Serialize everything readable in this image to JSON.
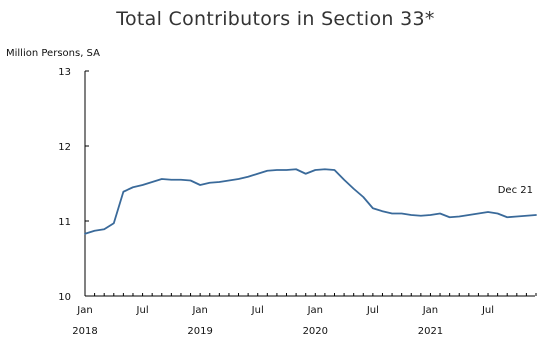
{
  "chart_data": {
    "type": "line",
    "title": "Total Contributors in Section 33*",
    "ylabel": "Million Persons, SA",
    "xlabel": "",
    "ylim": [
      10,
      13
    ],
    "yticks": [
      10,
      11,
      12,
      13
    ],
    "grid": false,
    "x_start": "2018-01",
    "x_end": "2021-12",
    "x_tick_labels": [
      {
        "month": 0,
        "label": "Jan",
        "year": "2018"
      },
      {
        "month": 6,
        "label": "Jul",
        "year": ""
      },
      {
        "month": 12,
        "label": "Jan",
        "year": "2019"
      },
      {
        "month": 18,
        "label": "Jul",
        "year": ""
      },
      {
        "month": 24,
        "label": "Jan",
        "year": "2020"
      },
      {
        "month": 30,
        "label": "Jul",
        "year": ""
      },
      {
        "month": 36,
        "label": "Jan",
        "year": "2021"
      },
      {
        "month": 42,
        "label": "Jul",
        "year": ""
      }
    ],
    "series": [
      {
        "color": "#3a6a9a",
        "x": [
          "2018-01",
          "2018-02",
          "2018-03",
          "2018-04",
          "2018-05",
          "2018-06",
          "2018-07",
          "2018-08",
          "2018-09",
          "2018-10",
          "2018-11",
          "2018-12",
          "2019-01",
          "2019-02",
          "2019-03",
          "2019-04",
          "2019-05",
          "2019-06",
          "2019-07",
          "2019-08",
          "2019-09",
          "2019-10",
          "2019-11",
          "2019-12",
          "2020-01",
          "2020-02",
          "2020-03",
          "2020-04",
          "2020-05",
          "2020-06",
          "2020-07",
          "2020-08",
          "2020-09",
          "2020-10",
          "2020-11",
          "2020-12",
          "2021-01",
          "2021-02",
          "2021-03",
          "2021-04",
          "2021-05",
          "2021-06",
          "2021-07",
          "2021-08",
          "2021-09",
          "2021-10",
          "2021-11",
          "2021-12"
        ],
        "values": [
          10.83,
          10.87,
          10.89,
          10.97,
          11.39,
          11.45,
          11.48,
          11.52,
          11.56,
          11.55,
          11.55,
          11.54,
          11.48,
          11.51,
          11.52,
          11.54,
          11.56,
          11.59,
          11.63,
          11.67,
          11.68,
          11.68,
          11.69,
          11.63,
          11.68,
          11.69,
          11.68,
          11.55,
          11.43,
          11.32,
          11.17,
          11.13,
          11.1,
          11.1,
          11.08,
          11.07,
          11.08,
          11.1,
          11.05,
          11.06,
          11.08,
          11.1,
          11.12,
          11.1,
          11.05,
          11.06,
          11.07,
          11.08
        ]
      }
    ],
    "annotations": [
      {
        "text": "Dec 21",
        "x": "2021-12",
        "y": 11.08
      }
    ]
  }
}
